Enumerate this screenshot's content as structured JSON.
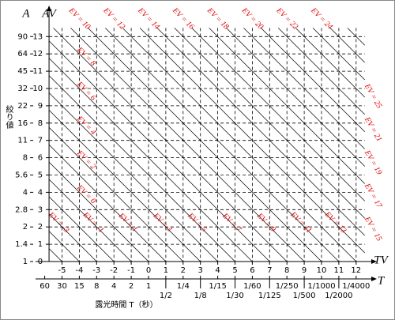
{
  "axes": {
    "a": "A",
    "av": "AV",
    "tv": "TV",
    "t": "T",
    "y_title": "絞り値",
    "x_title": "露光時間 T（秒）"
  },
  "tv_lim": [
    -5.75,
    12.5
  ],
  "av_lim": [
    0,
    13.5
  ],
  "tv_ticks": [
    -5,
    -4,
    -3,
    -2,
    -1,
    0,
    1,
    2,
    3,
    4,
    5,
    6,
    7,
    8,
    9,
    10,
    11,
    12
  ],
  "av_ticks": [
    0,
    1,
    2,
    3,
    4,
    5,
    6,
    7,
    8,
    9,
    10,
    11,
    12,
    13
  ],
  "a_ticks": [
    {
      "value": 0,
      "label": "1"
    },
    {
      "value": 1,
      "label": "1.4"
    },
    {
      "value": 2,
      "label": "2"
    },
    {
      "value": 3,
      "label": "2.8"
    },
    {
      "value": 4,
      "label": "4"
    },
    {
      "value": 5,
      "label": "5.6"
    },
    {
      "value": 6,
      "label": "8"
    },
    {
      "value": 7,
      "label": "11"
    },
    {
      "value": 8,
      "label": "16"
    },
    {
      "value": 9,
      "label": "22"
    },
    {
      "value": 10,
      "label": "32"
    },
    {
      "value": 11,
      "label": "45"
    },
    {
      "value": 12,
      "label": "64"
    },
    {
      "value": 13,
      "label": "90"
    }
  ],
  "t_ticks": [
    {
      "value": -6,
      "label": "60"
    },
    {
      "value": -5,
      "label": "30"
    },
    {
      "value": -4,
      "label": "15"
    },
    {
      "value": -3,
      "label": "8"
    },
    {
      "value": -2,
      "label": "4"
    },
    {
      "value": -1,
      "label": "2"
    },
    {
      "value": 0,
      "label": "1"
    },
    {
      "value": 1,
      "label": "1/2"
    },
    {
      "value": 2,
      "label": "1/4"
    },
    {
      "value": 3,
      "label": "1/8"
    },
    {
      "value": 4,
      "label": "1/15"
    },
    {
      "value": 5,
      "label": "1/30"
    },
    {
      "value": 6,
      "label": "1/60"
    },
    {
      "value": 7,
      "label": "1/125"
    },
    {
      "value": 8,
      "label": "1/250"
    },
    {
      "value": 9,
      "label": "1/500"
    },
    {
      "value": 10,
      "label": "1/1000"
    },
    {
      "value": 11,
      "label": "1/2000"
    },
    {
      "value": 12,
      "label": "1/4000"
    }
  ],
  "ev_labels": {
    "top": [
      "EV = 10",
      "EV = 12",
      "EV = 14",
      "EV = 16",
      "EV = 18",
      "EV = 20",
      "EV = 22",
      "EV = 24"
    ],
    "left": [
      "EV = 8",
      "EV = 6",
      "EV = 4",
      "EV = 2",
      "EV = 0"
    ],
    "bottom": [
      "EV = -3",
      "EV = -1",
      "EV = 1",
      "EV = 3",
      "EV = 5",
      "EV = 7",
      "EV = 9",
      "EV = 11",
      "EV = 13"
    ],
    "right": [
      "EV = 25",
      "EV = 21",
      "EV = 19",
      "EV = 17",
      "EV = 15"
    ]
  }
}
